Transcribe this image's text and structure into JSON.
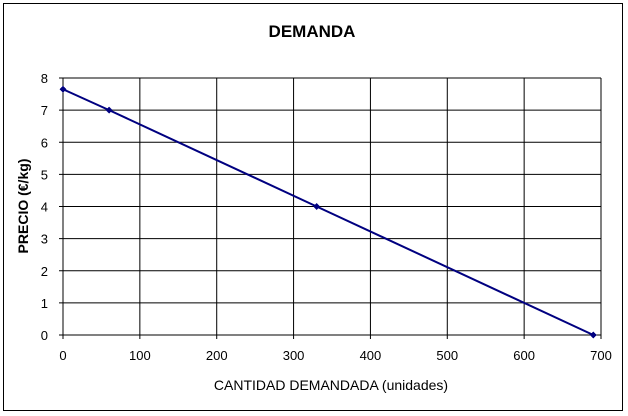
{
  "chart_data": {
    "type": "line",
    "title": "DEMANDA",
    "xlabel": "CANTIDAD DEMANDADA (unidades)",
    "ylabel": "PRECIO (€/kg)",
    "xlim": [
      0,
      700
    ],
    "ylim": [
      0,
      8
    ],
    "x_ticks": [
      0,
      100,
      200,
      300,
      400,
      500,
      600,
      700
    ],
    "y_ticks": [
      0,
      1,
      2,
      3,
      4,
      5,
      6,
      7,
      8
    ],
    "grid": true,
    "legend": false,
    "series": [
      {
        "color": "#000080",
        "points": [
          {
            "x": 0,
            "y": 7.65
          },
          {
            "x": 60,
            "y": 7.0
          },
          {
            "x": 330,
            "y": 4.0
          },
          {
            "x": 690,
            "y": 0.0
          }
        ]
      }
    ]
  }
}
